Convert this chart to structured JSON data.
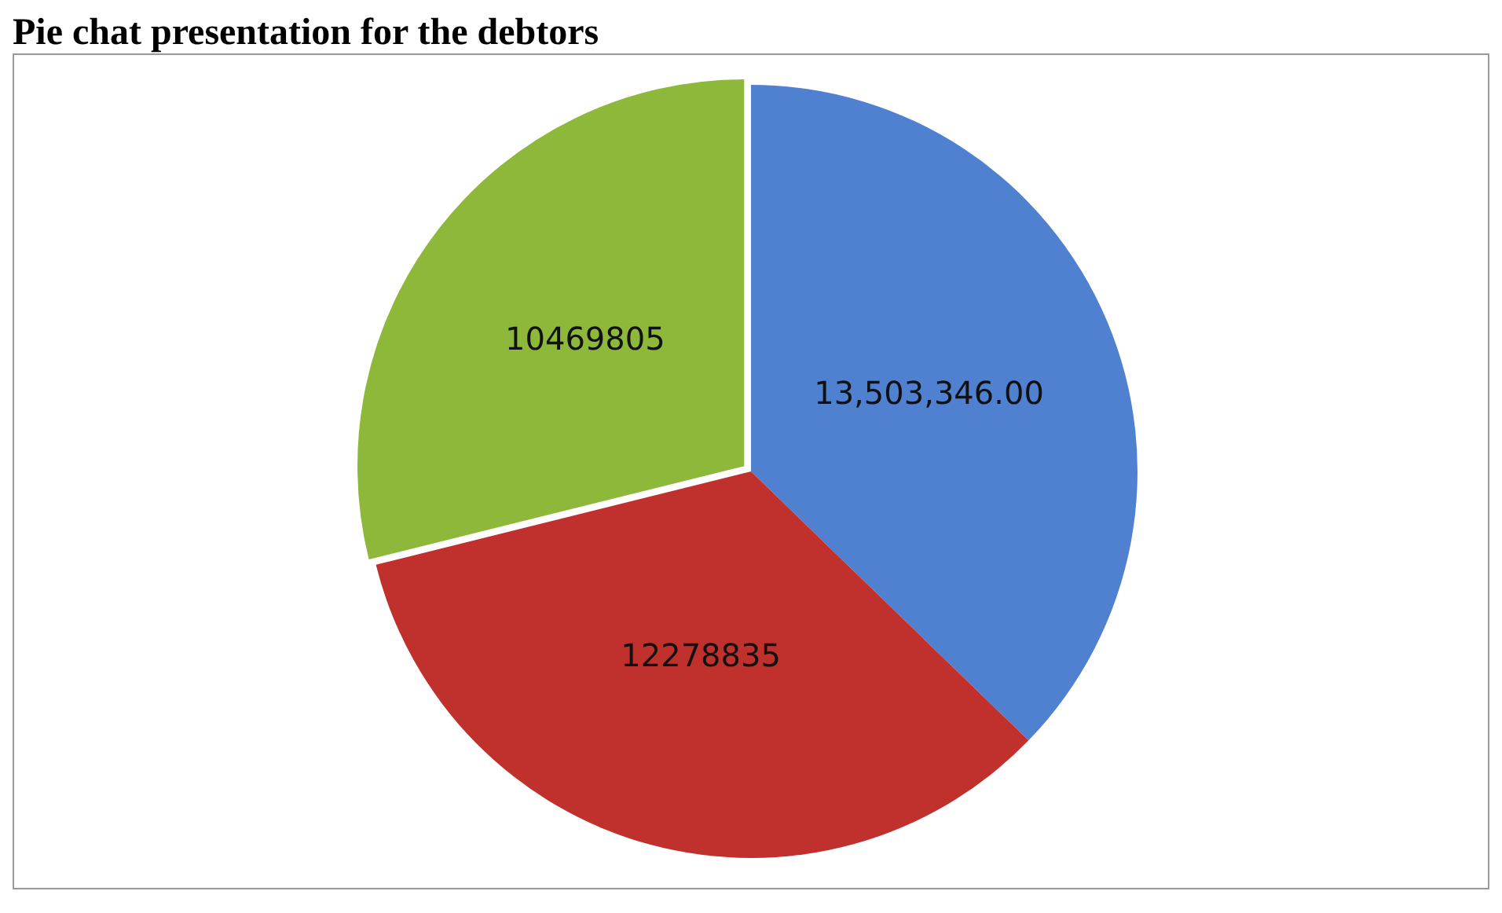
{
  "chart_data": {
    "type": "pie",
    "title": "Pie chat presentation for the debtors",
    "categories": [
      null,
      null,
      null
    ],
    "values": [
      13503346,
      12278835,
      10469805
    ],
    "colors": [
      "#4f81d0",
      "#c0302c",
      "#8db83a"
    ],
    "value_labels": [
      "13,503,346.00",
      "12278835",
      "10469805"
    ],
    "legend": false
  }
}
